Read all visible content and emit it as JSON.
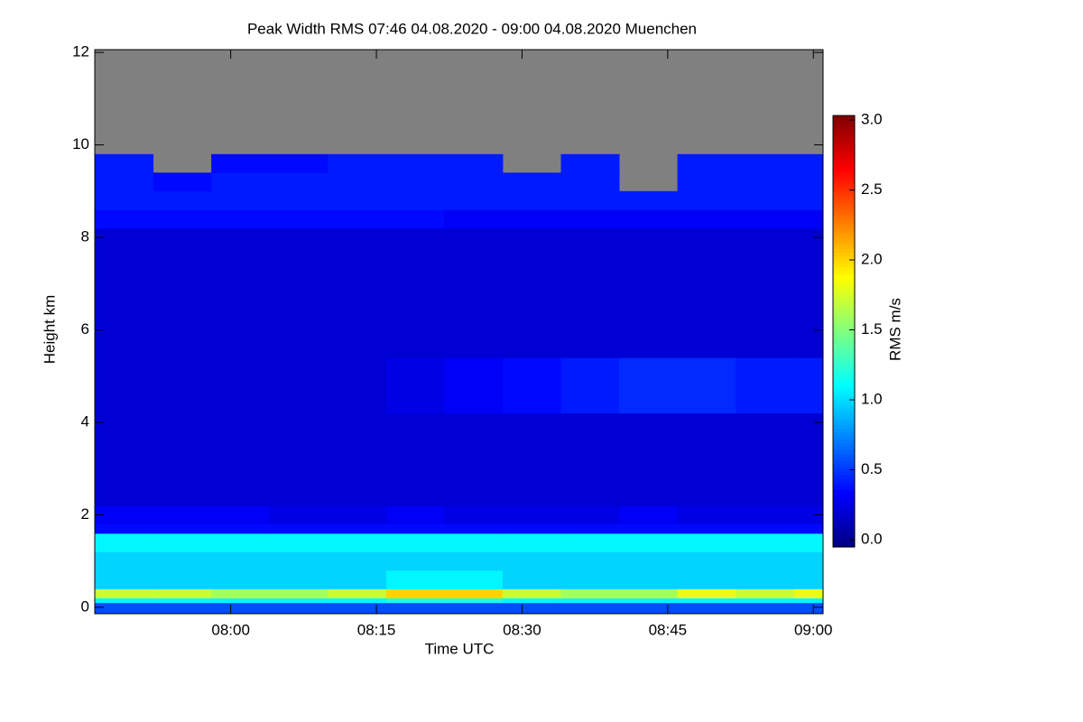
{
  "chart_data": {
    "type": "heatmap",
    "title": "Peak Width RMS   07:46 04.08.2020 - 09:00 04.08.2020 Muenchen",
    "x_label": "Time UTC",
    "y_label": "Height km",
    "colorbar_label": "RMS m/s",
    "x": [
      "07:46",
      "07:52",
      "07:58",
      "08:04",
      "08:10",
      "08:16",
      "08:22",
      "08:28",
      "08:34",
      "08:40",
      "08:46",
      "08:52",
      "08:58",
      "09:01"
    ],
    "y": [
      -0.14,
      0.1,
      0.2,
      0.4,
      0.8,
      1.2,
      1.6,
      1.8,
      2.2,
      4.2,
      5.4,
      8.2,
      8.6,
      9.0,
      9.4,
      9.8
    ],
    "z": [
      [
        0.6,
        0.6,
        0.6,
        0.6,
        0.6,
        0.6,
        0.6,
        0.6,
        0.6,
        0.6,
        0.6,
        0.6,
        0.6
      ],
      [
        1.1,
        1.1,
        1.1,
        1.1,
        1.1,
        1.2,
        1.2,
        1.1,
        1.1,
        1.1,
        1.1,
        1.1,
        1.1
      ],
      [
        1.7,
        1.7,
        1.6,
        1.6,
        1.7,
        2.0,
        2.0,
        1.7,
        1.6,
        1.6,
        1.8,
        1.7,
        1.8
      ],
      [
        1.0,
        1.0,
        1.0,
        1.0,
        1.0,
        1.1,
        1.1,
        1.0,
        1.0,
        1.0,
        1.0,
        1.0,
        1.0
      ],
      [
        1.0,
        1.0,
        1.0,
        1.0,
        1.0,
        1.0,
        1.0,
        1.0,
        1.0,
        1.0,
        1.0,
        1.0,
        1.0
      ],
      [
        1.1,
        1.1,
        1.1,
        1.1,
        1.1,
        1.1,
        1.1,
        1.1,
        1.1,
        1.1,
        1.1,
        1.1,
        1.1
      ],
      [
        0.4,
        0.4,
        0.4,
        0.4,
        0.4,
        0.4,
        0.4,
        0.4,
        0.4,
        0.4,
        0.4,
        0.4,
        0.4
      ],
      [
        0.35,
        0.35,
        0.35,
        0.3,
        0.3,
        0.35,
        0.3,
        0.3,
        0.3,
        0.35,
        0.3,
        0.3,
        0.3
      ],
      [
        0.25,
        0.25,
        0.25,
        0.25,
        0.25,
        0.25,
        0.25,
        0.25,
        0.25,
        0.25,
        0.25,
        0.25,
        0.25
      ],
      [
        0.25,
        0.25,
        0.25,
        0.25,
        0.25,
        0.3,
        0.35,
        0.4,
        0.45,
        0.5,
        0.5,
        0.45,
        0.45
      ],
      [
        0.25,
        0.25,
        0.25,
        0.25,
        0.25,
        0.25,
        0.25,
        0.25,
        0.25,
        0.25,
        0.25,
        0.25,
        0.25
      ],
      [
        0.4,
        0.4,
        0.4,
        0.4,
        0.4,
        0.4,
        0.35,
        0.35,
        0.35,
        0.35,
        0.35,
        0.35,
        0.35
      ],
      [
        0.45,
        0.45,
        0.45,
        0.45,
        0.45,
        0.45,
        0.45,
        0.45,
        0.45,
        0.45,
        0.45,
        0.45,
        0.45
      ],
      [
        0.45,
        0.4,
        0.45,
        0.45,
        0.45,
        0.45,
        0.45,
        0.45,
        0.45,
        null,
        0.45,
        0.45,
        0.45
      ],
      [
        0.45,
        null,
        0.4,
        0.4,
        0.45,
        0.45,
        0.45,
        null,
        0.45,
        null,
        0.45,
        0.45,
        0.45
      ]
    ],
    "missing_color": "#808080",
    "xlim": [
      "07:46",
      "09:01"
    ],
    "xticks": [
      "08:00",
      "08:15",
      "08:30",
      "08:45",
      "09:00"
    ],
    "ylim": [
      -0.14,
      12.06
    ],
    "yticks": [
      0,
      2,
      4,
      6,
      8,
      10,
      12
    ],
    "clim": [
      0,
      3
    ],
    "cticks": [
      {
        "value": 0,
        "label": "0.0"
      },
      {
        "value": 0.5,
        "label": "0.5"
      },
      {
        "value": 1,
        "label": "1.0"
      },
      {
        "value": 1.5,
        "label": "1.5"
      },
      {
        "value": 2,
        "label": "2.0"
      },
      {
        "value": 2.5,
        "label": "2.5"
      },
      {
        "value": 3,
        "label": "3.0"
      }
    ]
  }
}
